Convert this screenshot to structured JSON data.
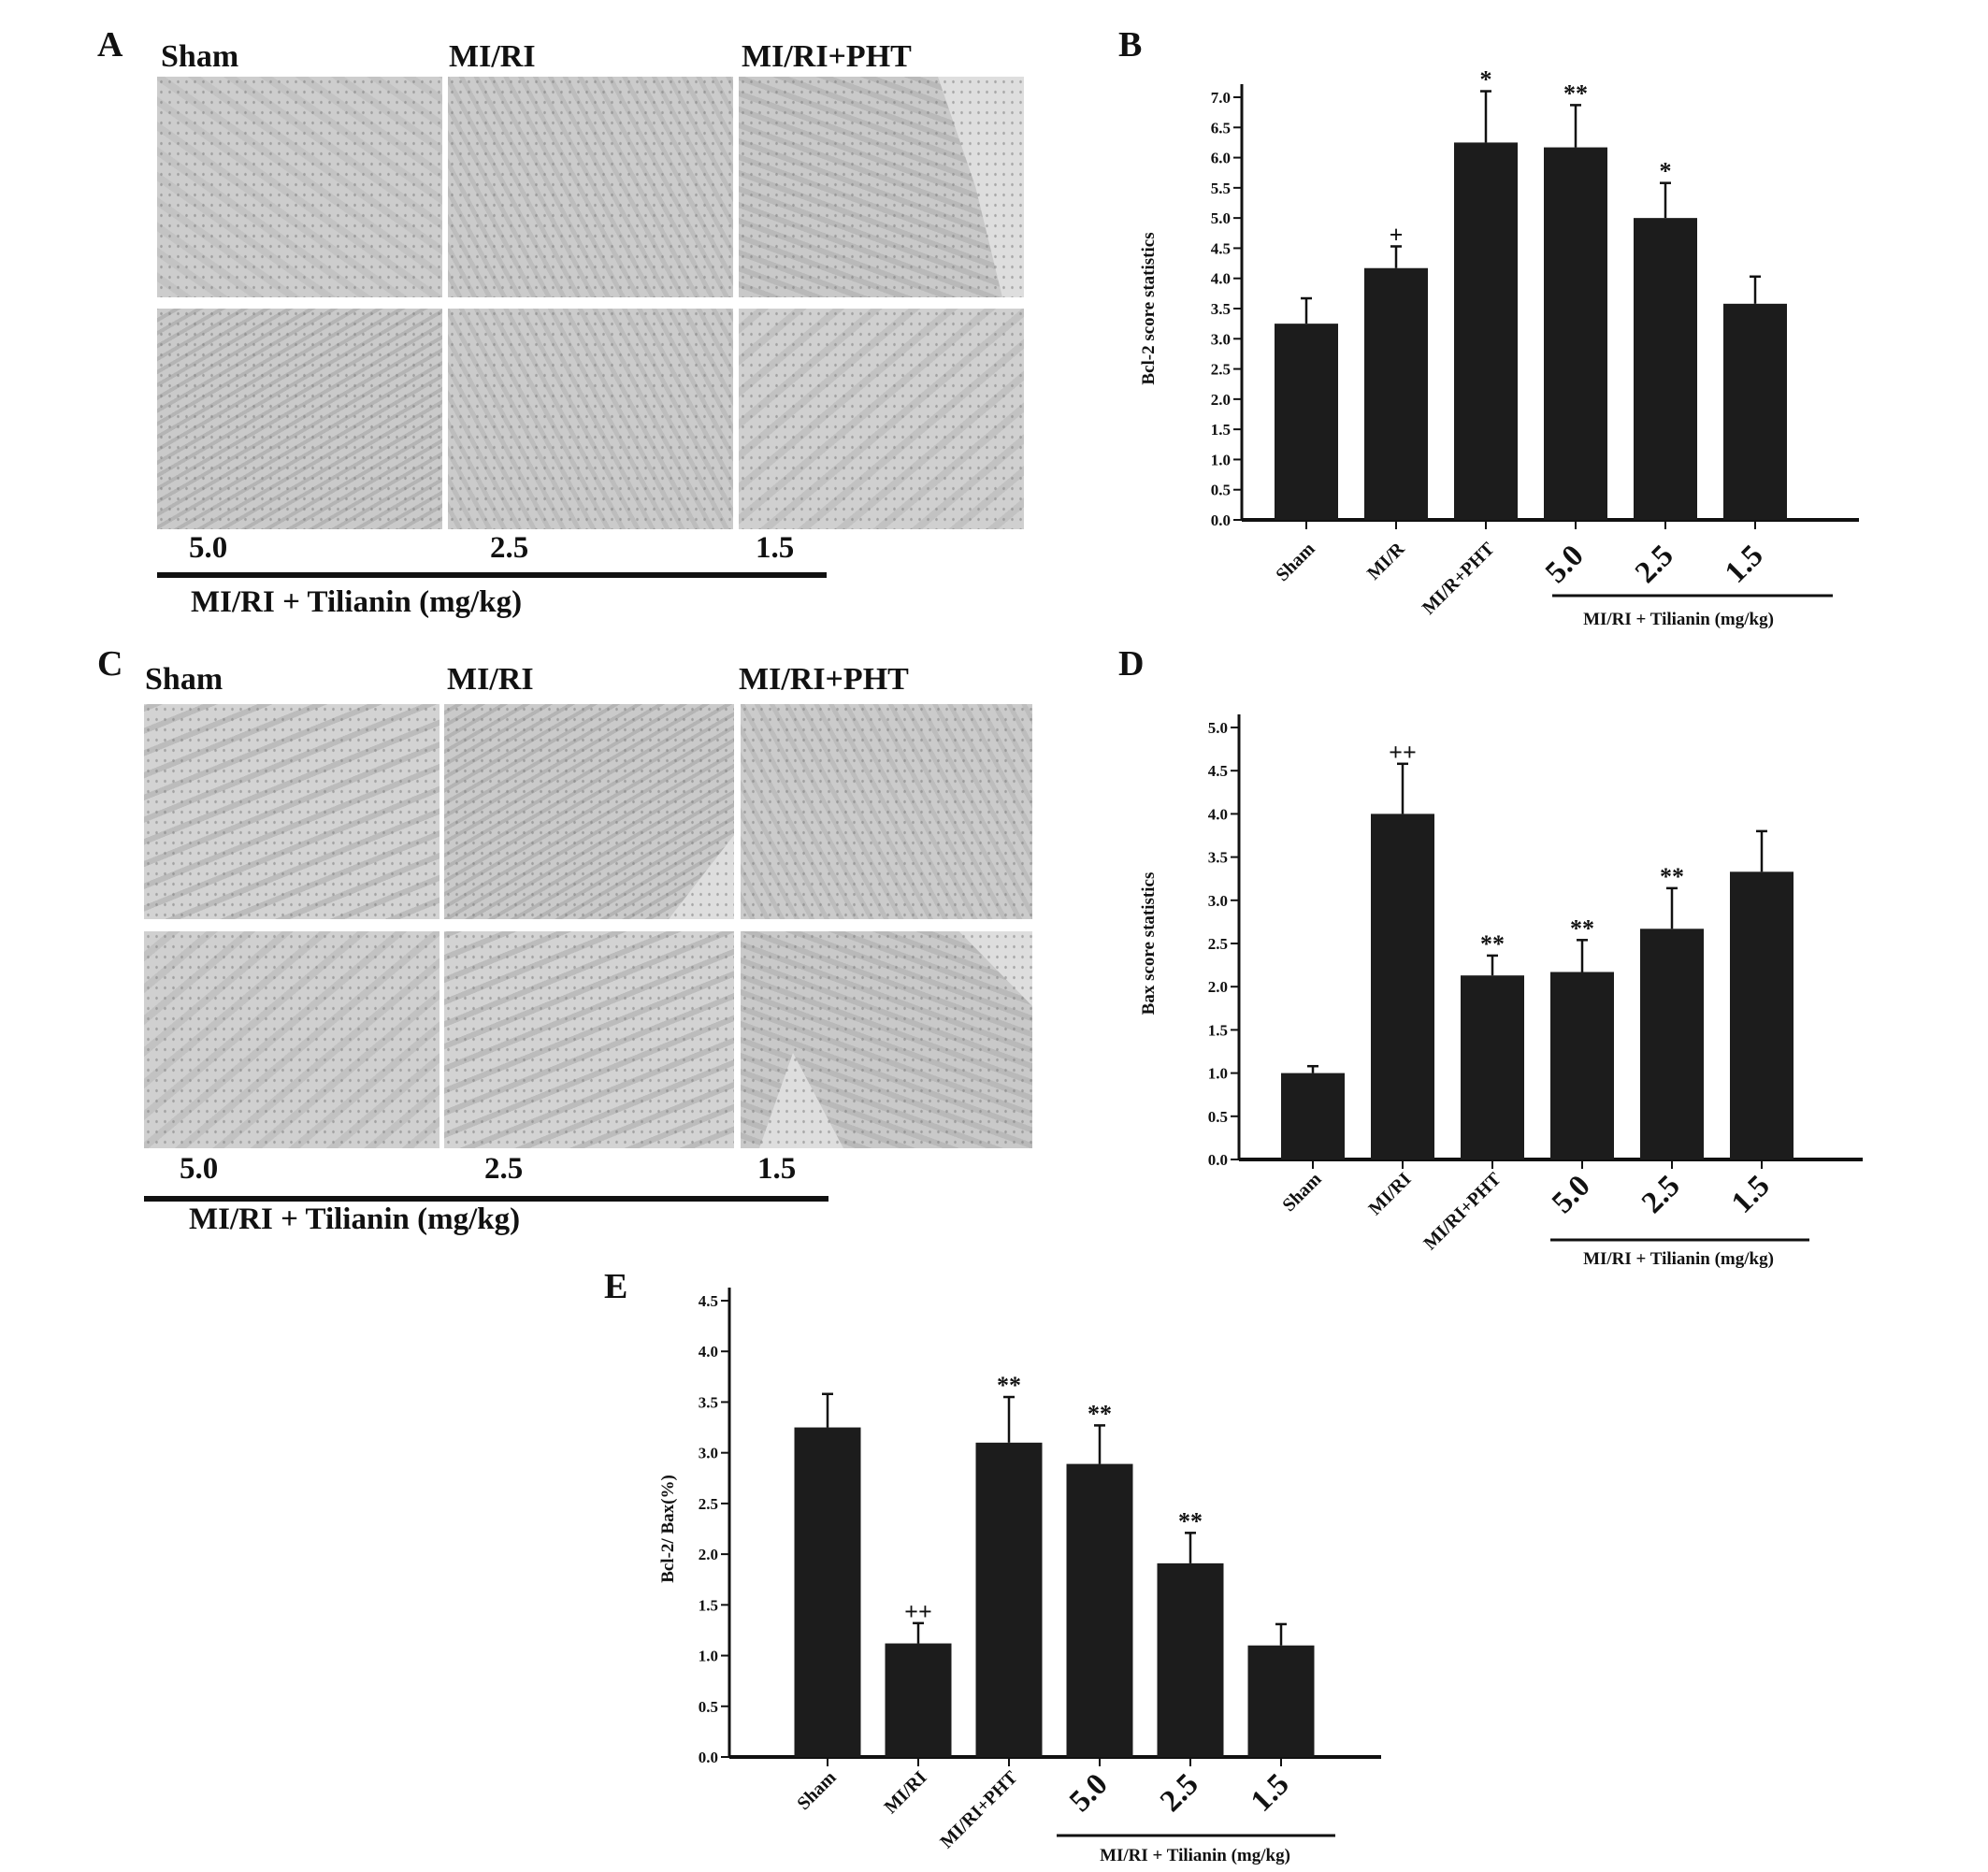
{
  "panels": {
    "A": {
      "letter": "A",
      "titles": [
        "Sham",
        "MI/RI",
        "MI/RI+PHT"
      ],
      "doses": [
        "5.0",
        "2.5",
        "1.5"
      ],
      "group_label": "MI/RI + Tilianin (mg/kg)"
    },
    "C": {
      "letter": "C",
      "titles": [
        "Sham",
        "MI/RI",
        "MI/RI+PHT"
      ],
      "doses": [
        "5.0",
        "2.5",
        "1.5"
      ],
      "group_label": "MI/RI + Tilianin (mg/kg)"
    },
    "B": {
      "letter": "B"
    },
    "D": {
      "letter": "D"
    },
    "E": {
      "letter": "E"
    }
  },
  "colors": {
    "bar": "#1c1c1c",
    "axis": "#111111",
    "tissue": "#cccccc"
  },
  "chart_data": [
    {
      "id": "B",
      "type": "bar",
      "categories": [
        "Sham",
        "MI/R",
        "MI/R+PHT",
        "5.0",
        "2.5",
        "1.5"
      ],
      "values": [
        3.25,
        4.17,
        6.25,
        6.17,
        5.0,
        3.58
      ],
      "errors": [
        0.42,
        0.36,
        0.85,
        0.7,
        0.58,
        0.45
      ],
      "annotations": [
        "",
        "+",
        "*",
        "**",
        "*",
        ""
      ],
      "ylabel": "Bcl-2 score statistics",
      "ylim": [
        0,
        7.0
      ],
      "yticks": [
        "0.0",
        "0.5",
        "1.0",
        "1.5",
        "2.0",
        "2.5",
        "3.0",
        "3.5",
        "4.0",
        "4.5",
        "5.0",
        "5.5",
        "6.0",
        "6.5",
        "7.0"
      ],
      "group_label": "MI/RI + Tilianin (mg/kg)",
      "group_span": [
        3,
        5
      ]
    },
    {
      "id": "D",
      "type": "bar",
      "categories": [
        "Sham",
        "MI/RI",
        "MI/RI+PHT",
        "5.0",
        "2.5",
        "1.5"
      ],
      "values": [
        1.0,
        4.0,
        2.13,
        2.17,
        2.67,
        3.33
      ],
      "errors": [
        0.08,
        0.58,
        0.23,
        0.37,
        0.47,
        0.47
      ],
      "annotations": [
        "",
        "++",
        "**",
        "**",
        "**",
        ""
      ],
      "ylabel": "Bax score statistics",
      "ylim": [
        0,
        5.0
      ],
      "yticks": [
        "0.0",
        "0.5",
        "1.0",
        "1.5",
        "2.0",
        "2.5",
        "3.0",
        "3.5",
        "4.0",
        "4.5",
        "5.0"
      ],
      "group_label": "MI/RI + Tilianin (mg/kg)",
      "group_span": [
        3,
        5
      ]
    },
    {
      "id": "E",
      "type": "bar",
      "categories": [
        "Sham",
        "MI/RI",
        "MI/RI+PHT",
        "5.0",
        "2.5",
        "1.5"
      ],
      "values": [
        3.25,
        1.12,
        3.1,
        2.89,
        1.91,
        1.1
      ],
      "errors": [
        0.33,
        0.2,
        0.45,
        0.38,
        0.3,
        0.21
      ],
      "annotations": [
        "",
        "++",
        "**",
        "**",
        "**",
        ""
      ],
      "ylabel": "Bcl-2/ Bax(%)",
      "ylim": [
        0,
        4.5
      ],
      "yticks": [
        "0.0",
        "0.5",
        "1.0",
        "1.5",
        "2.0",
        "2.5",
        "3.0",
        "3.5",
        "4.0",
        "4.5"
      ],
      "group_label": "MI/RI + Tilianin (mg/kg)",
      "group_span": [
        3,
        5
      ]
    }
  ]
}
